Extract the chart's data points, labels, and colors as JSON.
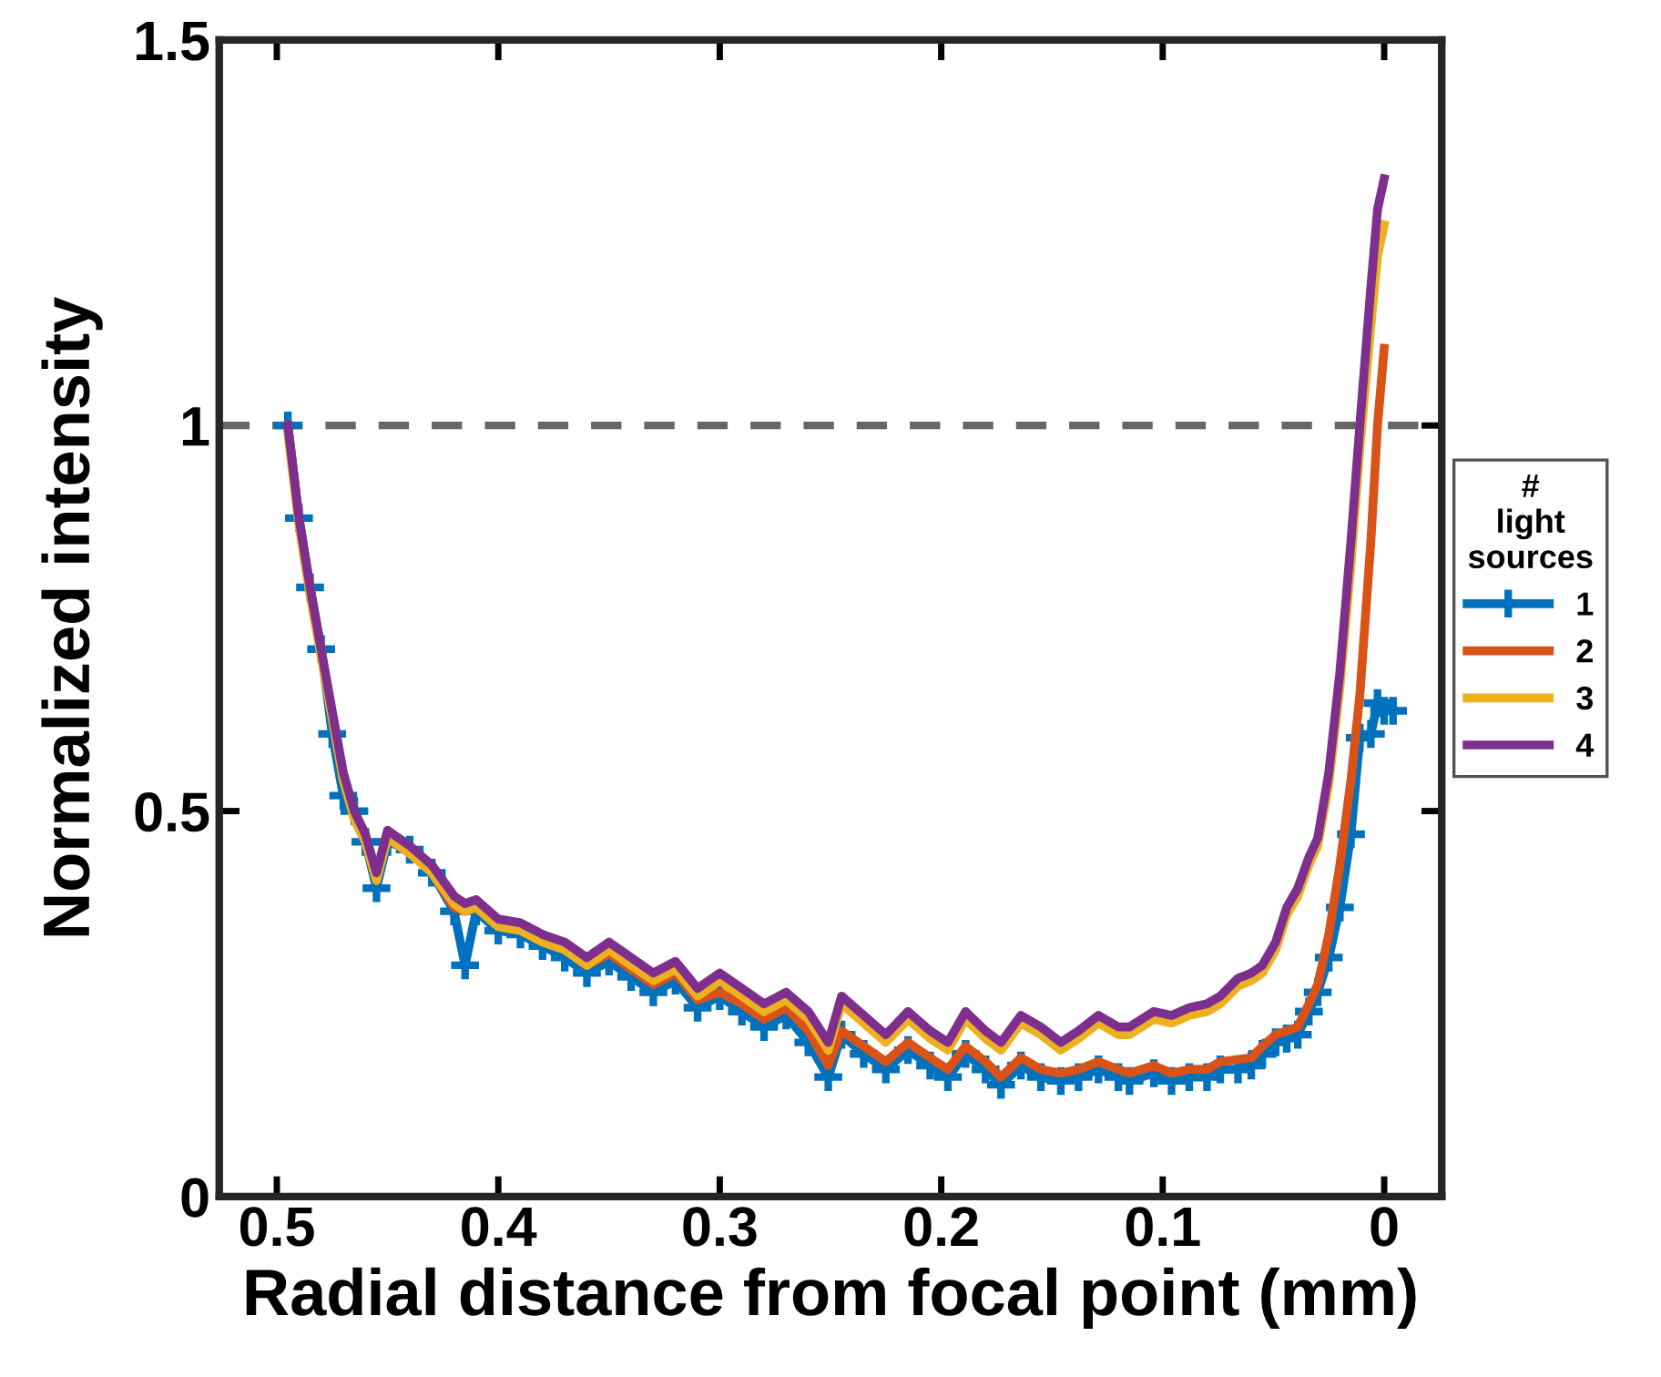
{
  "chart_data": {
    "type": "line",
    "xlabel": "Radial distance from focal point (mm)",
    "ylabel": "Normalized intensity",
    "legend_title": "#\nlight\nsources",
    "legend": "right",
    "grid": false,
    "xlim": [
      0.526,
      -0.026
    ],
    "xticks": [
      0.5,
      0.4,
      0.3,
      0.2,
      0.1,
      0
    ],
    "ylim": [
      0,
      1.5
    ],
    "yticks": [
      0,
      0.5,
      1,
      1.5
    ],
    "ref_lines": [
      {
        "axis": "y",
        "value": 1,
        "color": "#666666",
        "line_style": "dashed"
      }
    ],
    "x": [
      0.495,
      0.49,
      0.485,
      0.48,
      0.475,
      0.47,
      0.465,
      0.46,
      0.455,
      0.45,
      0.44,
      0.43,
      0.42,
      0.415,
      0.41,
      0.4,
      0.39,
      0.38,
      0.37,
      0.36,
      0.35,
      0.34,
      0.33,
      0.32,
      0.31,
      0.3,
      0.29,
      0.28,
      0.27,
      0.26,
      0.251,
      0.245,
      0.235,
      0.225,
      0.215,
      0.205,
      0.197,
      0.189,
      0.18,
      0.173,
      0.164,
      0.155,
      0.146,
      0.138,
      0.129,
      0.12,
      0.115,
      0.104,
      0.096,
      0.088,
      0.08,
      0.074,
      0.066,
      0.06,
      0.055,
      0.049,
      0.044,
      0.039,
      0.034,
      0.03,
      0.025,
      0.02,
      0.015,
      0.011,
      0.006,
      0.003,
      0.0
    ],
    "series": [
      {
        "name": "1",
        "color": "#0072bd",
        "marker": "cross",
        "x": [
          0.495,
          0.49,
          0.485,
          0.48,
          0.475,
          0.47,
          0.465,
          0.46,
          0.455,
          0.45,
          0.44,
          0.43,
          0.42,
          0.415,
          0.41,
          0.4,
          0.39,
          0.38,
          0.37,
          0.36,
          0.35,
          0.34,
          0.33,
          0.32,
          0.31,
          0.3,
          0.29,
          0.28,
          0.27,
          0.26,
          0.251,
          0.245,
          0.235,
          0.225,
          0.215,
          0.205,
          0.197,
          0.189,
          0.18,
          0.173,
          0.164,
          0.155,
          0.146,
          0.138,
          0.129,
          0.12,
          0.115,
          0.104,
          0.096,
          0.088,
          0.08,
          0.074,
          0.066,
          0.06,
          0.055,
          0.049,
          0.044,
          0.039,
          0.034,
          0.03,
          0.025,
          0.02,
          0.015,
          0.011,
          0.006,
          0.003,
          0.0,
          -0.004
        ],
        "values": [
          1.0,
          0.88,
          0.79,
          0.71,
          0.6,
          0.52,
          0.5,
          0.46,
          0.4,
          0.46,
          0.45,
          0.42,
          0.37,
          0.3,
          0.37,
          0.345,
          0.34,
          0.325,
          0.31,
          0.29,
          0.305,
          0.285,
          0.265,
          0.28,
          0.245,
          0.26,
          0.24,
          0.22,
          0.235,
          0.2,
          0.155,
          0.21,
          0.185,
          0.165,
          0.19,
          0.17,
          0.155,
          0.185,
          0.165,
          0.145,
          0.17,
          0.155,
          0.15,
          0.155,
          0.165,
          0.155,
          0.15,
          0.16,
          0.15,
          0.155,
          0.155,
          0.165,
          0.165,
          0.17,
          0.185,
          0.2,
          0.205,
          0.21,
          0.24,
          0.265,
          0.31,
          0.375,
          0.47,
          0.595,
          0.6,
          0.64,
          0.63,
          0.63
        ]
      },
      {
        "name": "2",
        "color": "#d95319",
        "values": [
          1.0,
          0.88,
          0.79,
          0.71,
          0.62,
          0.54,
          0.49,
          0.46,
          0.41,
          0.47,
          0.45,
          0.42,
          0.375,
          0.37,
          0.375,
          0.35,
          0.345,
          0.33,
          0.32,
          0.3,
          0.315,
          0.295,
          0.275,
          0.29,
          0.255,
          0.265,
          0.25,
          0.23,
          0.245,
          0.215,
          0.17,
          0.215,
          0.195,
          0.175,
          0.2,
          0.18,
          0.165,
          0.195,
          0.175,
          0.155,
          0.18,
          0.165,
          0.16,
          0.165,
          0.175,
          0.165,
          0.16,
          0.17,
          0.16,
          0.165,
          0.165,
          0.175,
          0.178,
          0.18,
          0.195,
          0.21,
          0.215,
          0.22,
          0.25,
          0.275,
          0.34,
          0.43,
          0.54,
          0.65,
          0.85,
          1.0,
          1.1
        ]
      },
      {
        "name": "3",
        "color": "#edb120",
        "values": [
          0.99,
          0.87,
          0.78,
          0.7,
          0.62,
          0.54,
          0.49,
          0.46,
          0.41,
          0.465,
          0.445,
          0.42,
          0.38,
          0.37,
          0.375,
          0.35,
          0.345,
          0.33,
          0.32,
          0.3,
          0.32,
          0.3,
          0.28,
          0.295,
          0.26,
          0.28,
          0.26,
          0.24,
          0.255,
          0.23,
          0.19,
          0.25,
          0.225,
          0.2,
          0.23,
          0.205,
          0.19,
          0.23,
          0.205,
          0.19,
          0.225,
          0.21,
          0.19,
          0.205,
          0.225,
          0.21,
          0.21,
          0.23,
          0.225,
          0.235,
          0.24,
          0.25,
          0.273,
          0.28,
          0.29,
          0.32,
          0.365,
          0.39,
          0.43,
          0.455,
          0.535,
          0.66,
          0.82,
          0.97,
          1.13,
          1.22,
          1.26
        ]
      },
      {
        "name": "4",
        "color": "#7e2f8e",
        "values": [
          1.0,
          0.88,
          0.79,
          0.71,
          0.63,
          0.55,
          0.5,
          0.47,
          0.42,
          0.475,
          0.455,
          0.43,
          0.39,
          0.38,
          0.385,
          0.36,
          0.355,
          0.34,
          0.33,
          0.31,
          0.33,
          0.31,
          0.29,
          0.305,
          0.27,
          0.29,
          0.27,
          0.25,
          0.265,
          0.24,
          0.2,
          0.26,
          0.235,
          0.21,
          0.24,
          0.215,
          0.2,
          0.24,
          0.215,
          0.2,
          0.235,
          0.22,
          0.2,
          0.215,
          0.235,
          0.22,
          0.22,
          0.24,
          0.235,
          0.245,
          0.25,
          0.26,
          0.283,
          0.29,
          0.3,
          0.33,
          0.375,
          0.4,
          0.44,
          0.465,
          0.55,
          0.68,
          0.85,
          1.0,
          1.18,
          1.28,
          1.32
        ]
      }
    ]
  }
}
